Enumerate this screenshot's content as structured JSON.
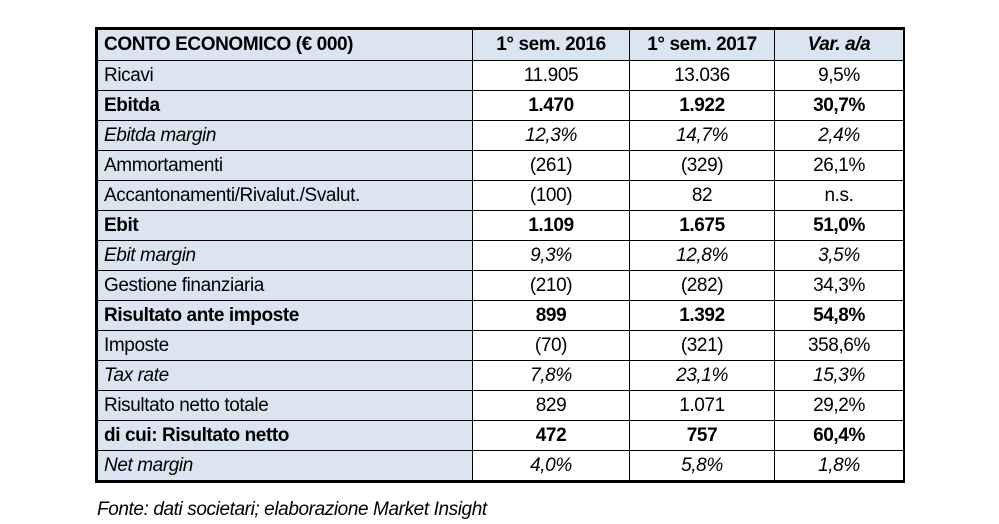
{
  "colors": {
    "header_bg": "#dbe5f1",
    "label_bg": "#dbe5f1",
    "border": "#000000",
    "text": "#000000"
  },
  "chart_data": {
    "type": "table",
    "title": "CONTO ECONOMICO (€ 000)",
    "columns": [
      "CONTO ECONOMICO (€ 000)",
      "1° sem. 2016",
      "1° sem. 2017",
      "Var. a/a"
    ],
    "rows": [
      {
        "label": "Ricavi",
        "style": "normal",
        "values": [
          "11.905",
          "13.036",
          "9,5%"
        ]
      },
      {
        "label": "Ebitda",
        "style": "bold",
        "values": [
          "1.470",
          "1.922",
          "30,7%"
        ]
      },
      {
        "label": "Ebitda margin",
        "style": "italic",
        "values": [
          "12,3%",
          "14,7%",
          "2,4%"
        ]
      },
      {
        "label": "Ammortamenti",
        "style": "normal",
        "values": [
          "(261)",
          "(329)",
          "26,1%"
        ]
      },
      {
        "label": "Accantonamenti/Rivalut./Svalut.",
        "style": "normal",
        "values": [
          "(100)",
          "82",
          "n.s."
        ]
      },
      {
        "label": "Ebit",
        "style": "bold",
        "values": [
          "1.109",
          "1.675",
          "51,0%"
        ]
      },
      {
        "label": "Ebit margin",
        "style": "italic",
        "values": [
          "9,3%",
          "12,8%",
          "3,5%"
        ]
      },
      {
        "label": "Gestione finanziaria",
        "style": "normal",
        "values": [
          "(210)",
          "(282)",
          "34,3%"
        ]
      },
      {
        "label": "Risultato ante imposte",
        "style": "bold",
        "values": [
          "899",
          "1.392",
          "54,8%"
        ]
      },
      {
        "label": "Imposte",
        "style": "normal",
        "values": [
          "(70)",
          "(321)",
          "358,6%"
        ]
      },
      {
        "label": "Tax rate",
        "style": "italic",
        "values": [
          "7,8%",
          "23,1%",
          "15,3%"
        ]
      },
      {
        "label": "Risultato netto totale",
        "style": "normal",
        "values": [
          "829",
          "1.071",
          "29,2%"
        ]
      },
      {
        "label": "di cui: Risultato netto",
        "style": "bold",
        "values": [
          "472",
          "757",
          "60,4%"
        ]
      },
      {
        "label": "Net margin",
        "style": "italic",
        "values": [
          "4,0%",
          "5,8%",
          "1,8%"
        ]
      }
    ],
    "source_note": "Fonte: dati societari; elaborazione Market Insight"
  }
}
